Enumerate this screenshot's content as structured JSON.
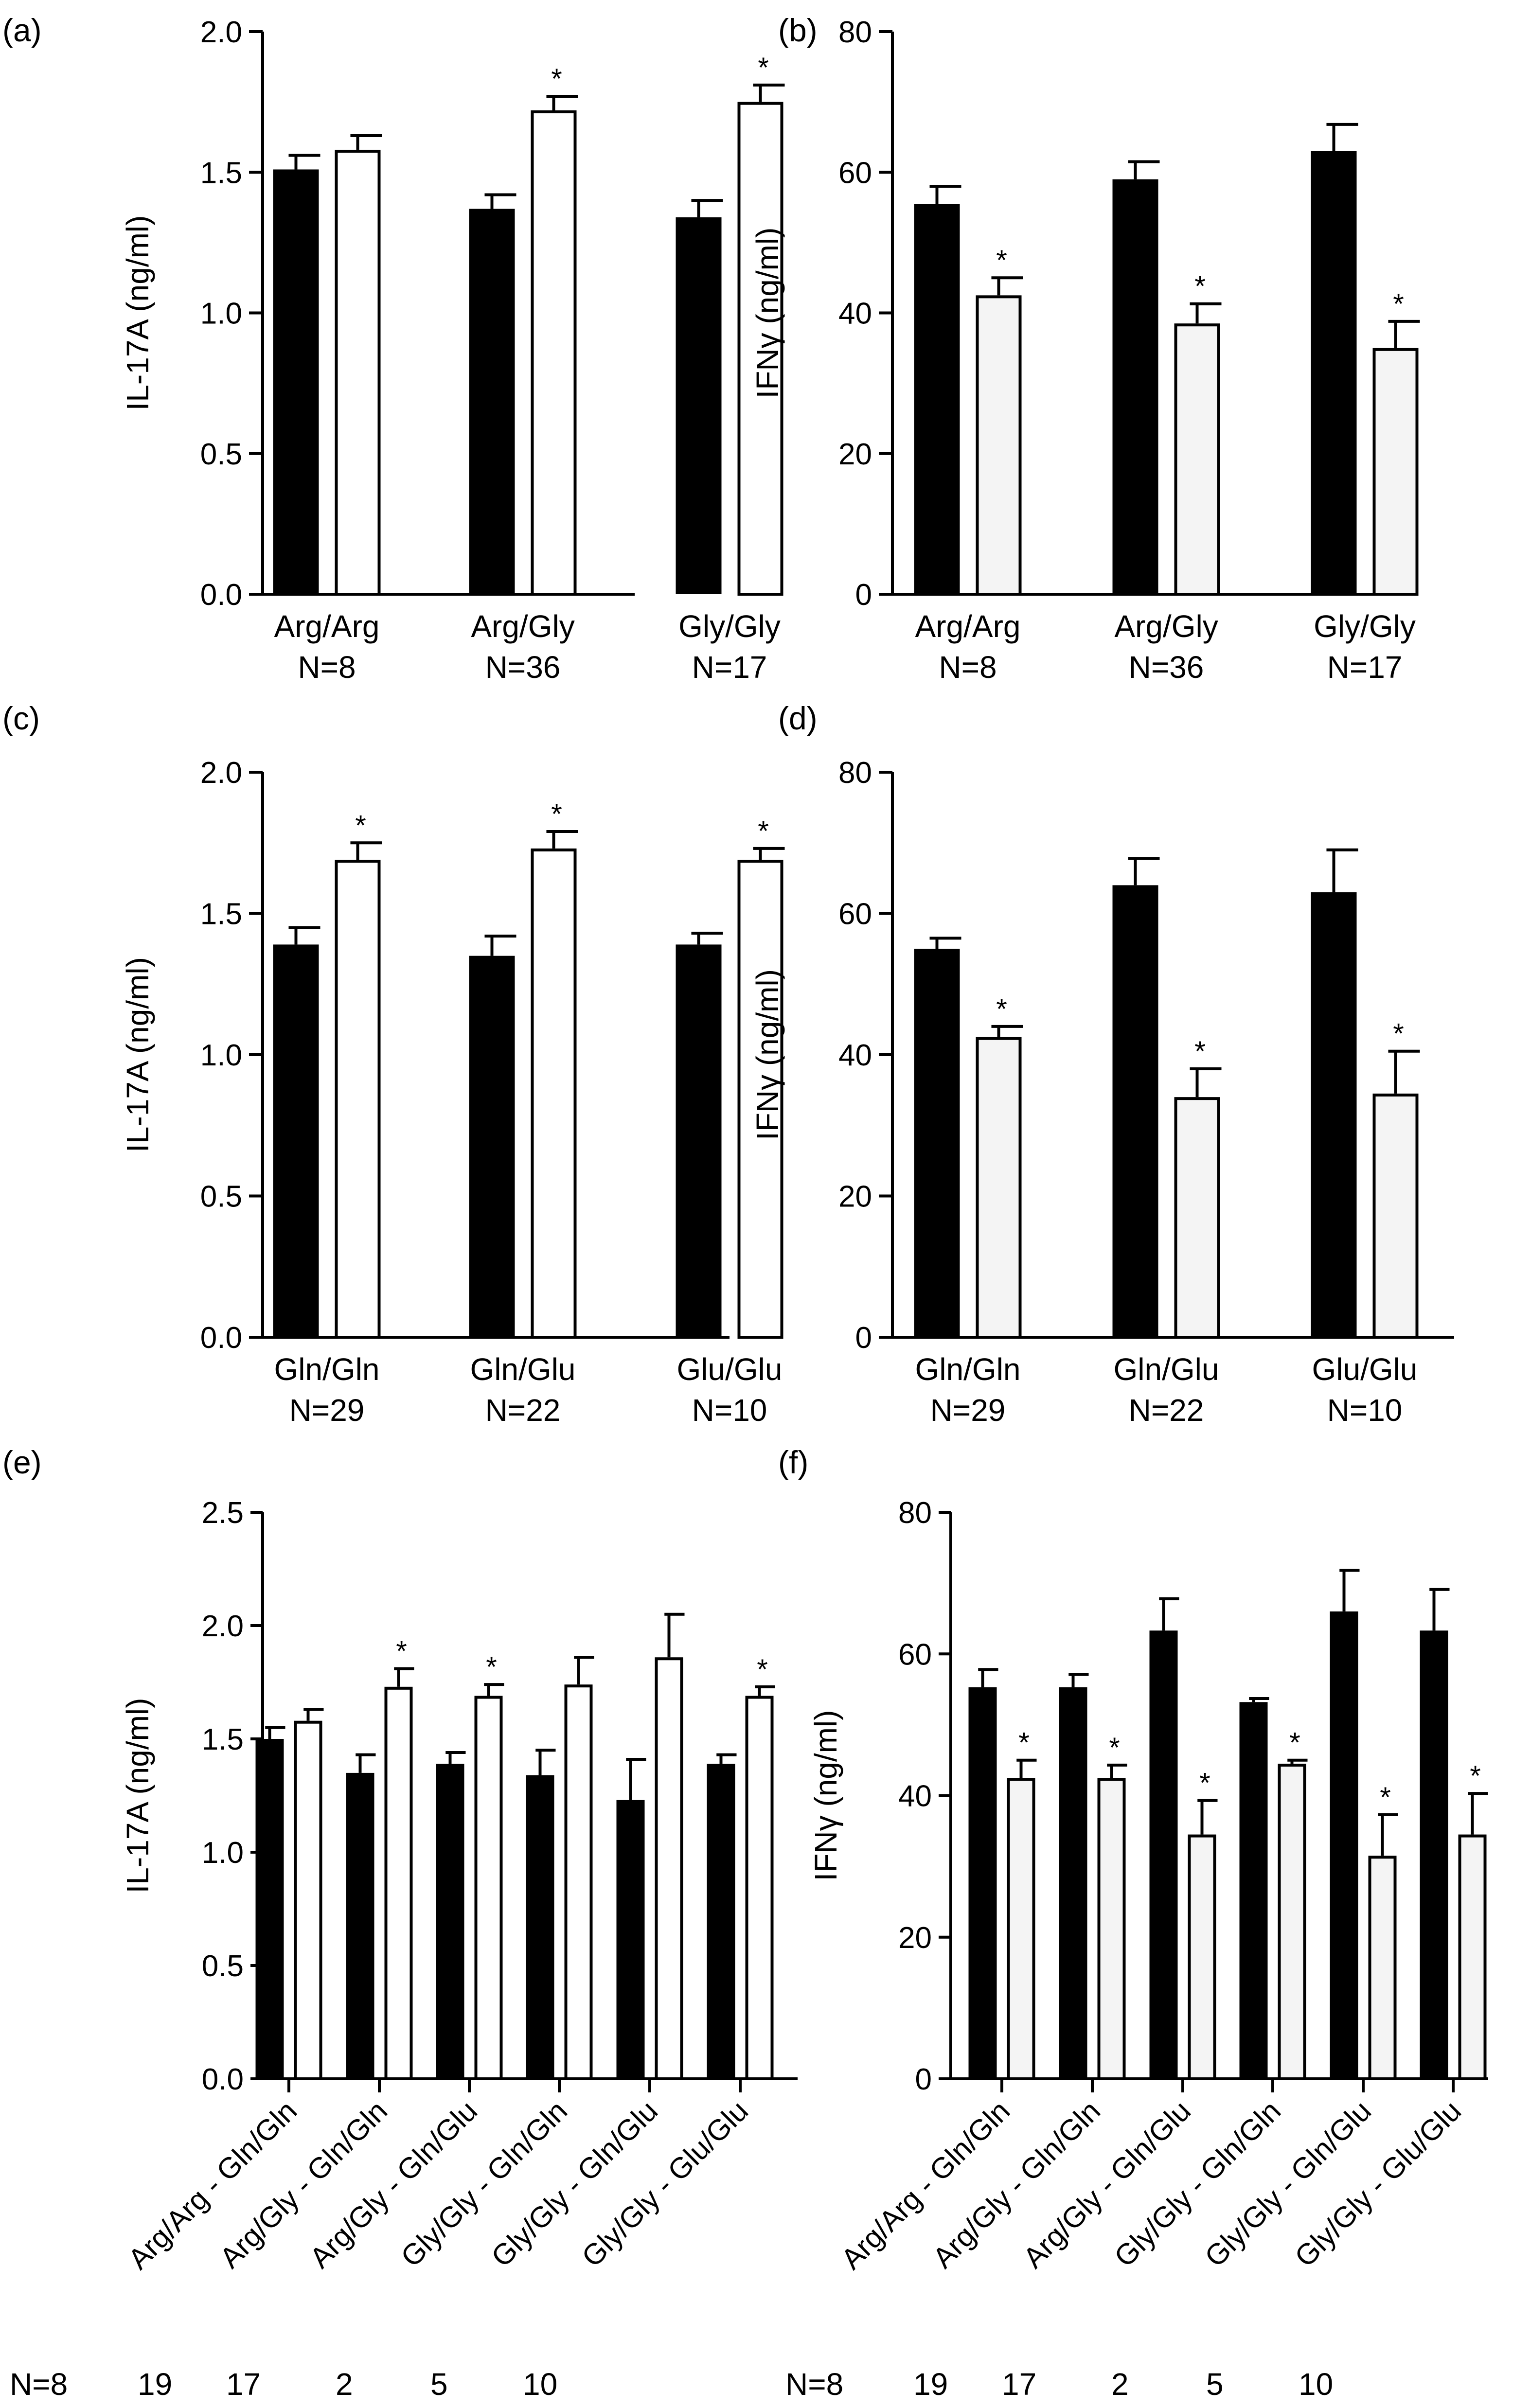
{
  "figure": {
    "colors": {
      "bar_dark": "#000000",
      "bar_light": "#ffffff",
      "bar_light_alt": "#f4f4f4",
      "ink": "#000000"
    },
    "significance_marker": "*"
  },
  "chart_data": [
    {
      "panel_label": "(a)",
      "type": "bar",
      "ylabel": "IL-17A (ng/ml)",
      "ylim": [
        0,
        2.0
      ],
      "yticks": [
        "0.0",
        "0.5",
        "1.0",
        "1.5",
        "2.0"
      ],
      "ytick_values": [
        0,
        0.5,
        1.0,
        1.5,
        2.0
      ],
      "categories": [
        [
          "Arg/Arg",
          "N=8"
        ],
        [
          "Arg/Gly",
          "N=36"
        ],
        [
          "Gly/Gly",
          "N=17"
        ]
      ],
      "series": [
        {
          "name": "dark",
          "values": [
            1.51,
            1.37,
            1.34
          ],
          "errors": [
            0.05,
            0.05,
            0.06
          ]
        },
        {
          "name": "light",
          "values": [
            1.58,
            1.72,
            1.75
          ],
          "errors": [
            0.05,
            0.05,
            0.06
          ],
          "significant": [
            false,
            true,
            true
          ]
        }
      ]
    },
    {
      "panel_label": "(b)",
      "type": "bar",
      "ylabel": "IFNγ (ng/ml)",
      "ylim": [
        0,
        80
      ],
      "yticks": [
        "0",
        "20",
        "40",
        "60",
        "80"
      ],
      "ytick_values": [
        0,
        20,
        40,
        60,
        80
      ],
      "categories": [
        [
          "Arg/Arg",
          "N=8"
        ],
        [
          "Arg/Gly",
          "N=36"
        ],
        [
          "Gly/Gly",
          "N=17"
        ]
      ],
      "series": [
        {
          "name": "dark",
          "values": [
            55.5,
            59,
            63
          ],
          "errors": [
            2.5,
            2.5,
            3.8
          ]
        },
        {
          "name": "light",
          "values": [
            42.5,
            38.5,
            35
          ],
          "errors": [
            2.5,
            2.8,
            3.8
          ],
          "significant": [
            true,
            true,
            true
          ]
        }
      ]
    },
    {
      "panel_label": "(c)",
      "type": "bar",
      "ylabel": "IL-17A (ng/ml)",
      "ylim": [
        0,
        2.0
      ],
      "yticks": [
        "0.0",
        "0.5",
        "1.0",
        "1.5",
        "2.0"
      ],
      "ytick_values": [
        0,
        0.5,
        1.0,
        1.5,
        2.0
      ],
      "categories": [
        [
          "Gln/Gln",
          "N=29"
        ],
        [
          "Gln/Glu",
          "N=22"
        ],
        [
          "Glu/Glu",
          "N=10"
        ]
      ],
      "series": [
        {
          "name": "dark",
          "values": [
            1.39,
            1.35,
            1.39
          ],
          "errors": [
            0.06,
            0.07,
            0.04
          ]
        },
        {
          "name": "light",
          "values": [
            1.69,
            1.73,
            1.69
          ],
          "errors": [
            0.06,
            0.06,
            0.04
          ],
          "significant": [
            true,
            true,
            true
          ]
        }
      ]
    },
    {
      "panel_label": "(d)",
      "type": "bar",
      "ylabel": "IFNγ (ng/ml)",
      "ylim": [
        0,
        80
      ],
      "yticks": [
        "0",
        "20",
        "40",
        "60",
        "80"
      ],
      "ytick_values": [
        0,
        20,
        40,
        60,
        80
      ],
      "categories": [
        [
          "Gln/Gln",
          "N=29"
        ],
        [
          "Gln/Glu",
          "N=22"
        ],
        [
          "Glu/Glu",
          "N=10"
        ]
      ],
      "series": [
        {
          "name": "dark",
          "values": [
            55,
            64,
            63
          ],
          "errors": [
            1.5,
            3.8,
            6
          ]
        },
        {
          "name": "light",
          "values": [
            42.5,
            34,
            34.5
          ],
          "errors": [
            1.5,
            4,
            6
          ],
          "significant": [
            true,
            true,
            true
          ]
        }
      ]
    },
    {
      "panel_label": "(e)",
      "type": "bar",
      "ylabel": "IL-17A (ng/ml)",
      "ylim": [
        0,
        2.5
      ],
      "yticks": [
        "0.0",
        "0.5",
        "1.0",
        "1.5",
        "2.0",
        "2.5"
      ],
      "ytick_values": [
        0,
        0.5,
        1.0,
        1.5,
        2.0,
        2.5
      ],
      "categories": [
        "Arg/Arg - Gln/Gln",
        "Arg/Gly - Gln/Gln",
        "Arg/Gly - Gln/Glu",
        "Gly/Gly - Gln/Gln",
        "Gly/Gly - Gln/Glu",
        "Gly/Gly - Glu/Glu"
      ],
      "n_labels": [
        "N=8",
        "19",
        "17",
        "2",
        "5",
        "10"
      ],
      "series": [
        {
          "name": "dark",
          "values": [
            1.5,
            1.35,
            1.39,
            1.34,
            1.23,
            1.39
          ],
          "errors": [
            0.05,
            0.08,
            0.05,
            0.11,
            0.18,
            0.04
          ]
        },
        {
          "name": "light",
          "values": [
            1.58,
            1.73,
            1.69,
            1.74,
            1.86,
            1.69
          ],
          "errors": [
            0.05,
            0.08,
            0.05,
            0.12,
            0.19,
            0.04
          ],
          "significant": [
            false,
            true,
            true,
            false,
            false,
            true
          ]
        }
      ]
    },
    {
      "panel_label": "(f)",
      "type": "bar",
      "ylabel": "IFNγ (ng/ml)",
      "ylim": [
        0,
        80
      ],
      "yticks": [
        "0",
        "20",
        "40",
        "60",
        "80"
      ],
      "ytick_values": [
        0,
        20,
        40,
        60,
        80
      ],
      "categories": [
        "Arg/Arg - Gln/Gln",
        "Arg/Gly - Gln/Gln",
        "Arg/Gly - Gln/Glu",
        "Gly/Gly - Gln/Gln",
        "Gly/Gly - Gln/Glu",
        "Gly/Gly - Glu/Glu"
      ],
      "n_labels": [
        "N=8",
        "19",
        "17",
        "2",
        "5",
        "10"
      ],
      "series": [
        {
          "name": "dark",
          "values": [
            55.3,
            55.3,
            63.3,
            53.2,
            66,
            63.3
          ],
          "errors": [
            2.5,
            1.8,
            4.5,
            0.5,
            5.8,
            5.8
          ]
        },
        {
          "name": "light",
          "values": [
            42.5,
            42.5,
            34.5,
            44.5,
            31.5,
            34.5
          ],
          "errors": [
            2.5,
            1.8,
            4.8,
            0.5,
            5.8,
            5.8
          ],
          "significant": [
            true,
            true,
            true,
            true,
            true,
            true
          ]
        }
      ]
    }
  ]
}
